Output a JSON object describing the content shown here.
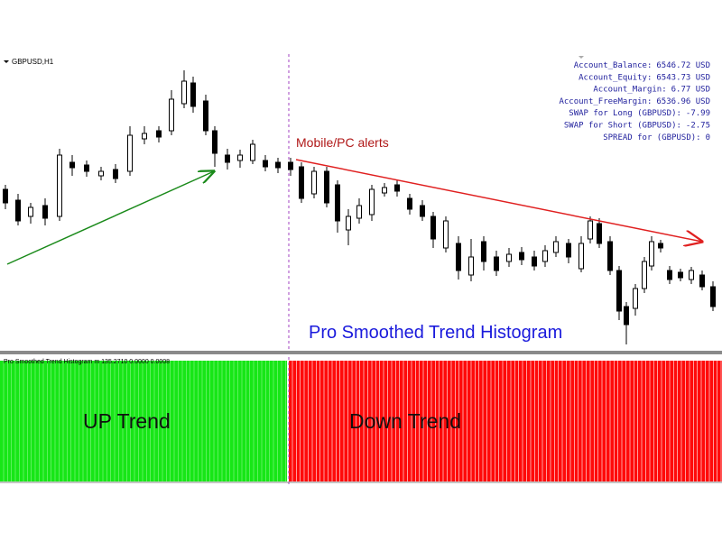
{
  "header": {
    "symbol": "GBPUSD,H1"
  },
  "account": [
    {
      "label": "Account_Balance:",
      "value": "6546.72 USD"
    },
    {
      "label": "Account_Equity:",
      "value": "6543.73 USD"
    },
    {
      "label": "Account_Margin:",
      "value": "6.77 USD"
    },
    {
      "label": "Account_FreeMargin:",
      "value": "6536.96 USD"
    },
    {
      "label": "SWAP for Long (GBPUSD):",
      "value": "-7.99"
    },
    {
      "label": "SWAP for Short (GBPUSD):",
      "value": "-2.75"
    },
    {
      "label": "SPREAD for (GBPUSD):",
      "value": "0"
    }
  ],
  "annotations": {
    "alerts": "Mobile/PC alerts",
    "indicator_name": "Pro Smoothed Trend Histogram"
  },
  "indicator_panel": {
    "caption": "Pro Smoothed Trend Histogram m 135.2710 0.0000 0.0008",
    "up_label": "UP Trend",
    "down_label": "Down Trend"
  }
}
